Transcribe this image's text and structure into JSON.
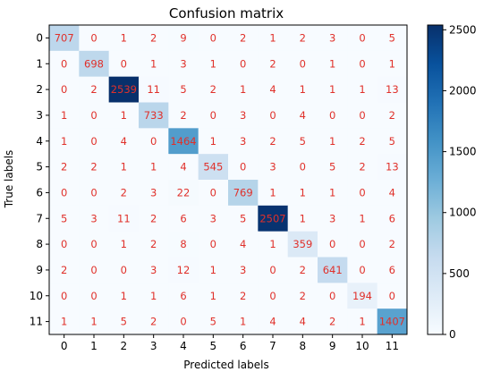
{
  "chart_data": {
    "type": "heatmap",
    "title": "Confusion matrix",
    "xlabel": "Predicted labels",
    "ylabel": "True labels",
    "x_categories": [
      "0",
      "1",
      "2",
      "3",
      "4",
      "5",
      "6",
      "7",
      "8",
      "9",
      "10",
      "11"
    ],
    "y_categories": [
      "0",
      "1",
      "2",
      "3",
      "4",
      "5",
      "6",
      "7",
      "8",
      "9",
      "10",
      "11"
    ],
    "values": [
      [
        707,
        0,
        1,
        2,
        9,
        0,
        2,
        1,
        2,
        3,
        0,
        5
      ],
      [
        0,
        698,
        0,
        1,
        3,
        1,
        0,
        2,
        0,
        1,
        0,
        1
      ],
      [
        0,
        2,
        2539,
        11,
        5,
        2,
        1,
        4,
        1,
        1,
        1,
        13
      ],
      [
        1,
        0,
        1,
        733,
        2,
        0,
        3,
        0,
        4,
        0,
        0,
        2
      ],
      [
        1,
        0,
        4,
        0,
        1464,
        1,
        3,
        2,
        5,
        1,
        2,
        5
      ],
      [
        2,
        2,
        1,
        1,
        4,
        545,
        0,
        3,
        0,
        5,
        2,
        13
      ],
      [
        0,
        0,
        2,
        3,
        22,
        0,
        769,
        1,
        1,
        1,
        0,
        4
      ],
      [
        5,
        3,
        11,
        2,
        6,
        3,
        5,
        2507,
        1,
        3,
        1,
        6
      ],
      [
        0,
        0,
        1,
        2,
        8,
        0,
        4,
        1,
        359,
        0,
        0,
        2
      ],
      [
        2,
        0,
        0,
        3,
        12,
        1,
        3,
        0,
        2,
        641,
        0,
        6
      ],
      [
        0,
        0,
        1,
        1,
        6,
        1,
        2,
        0,
        2,
        0,
        194,
        0
      ],
      [
        1,
        1,
        5,
        2,
        0,
        5,
        1,
        4,
        4,
        2,
        1,
        1407
      ]
    ],
    "colorbar": {
      "ticks": [
        0,
        500,
        1000,
        1500,
        2000,
        2500
      ],
      "range": [
        0,
        2539
      ],
      "colormap": "Blues"
    },
    "cell_text_color": "#e0302a"
  }
}
